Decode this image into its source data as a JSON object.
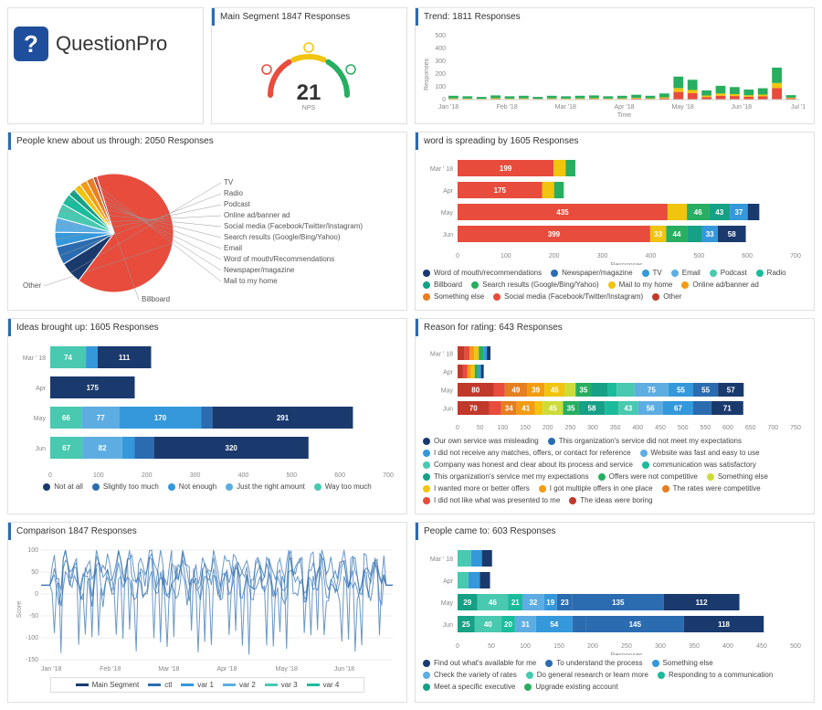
{
  "logo": {
    "text": "QuestionPro"
  },
  "nps": {
    "title": "Main Segment 1847 Responses",
    "value": "21",
    "sub": "NPS",
    "red": "#e74c3c",
    "yellow": "#f1c40f",
    "green": "#27ae60"
  },
  "trend": {
    "title": "Trend: 1811 Responses",
    "type": "stacked-bar",
    "ylabel": "Responses",
    "xlabel": "Time",
    "months": [
      "Jan '18",
      "Feb '18",
      "Mar '18",
      "Apr '18",
      "May '18",
      "Jun '18",
      "Jul '18"
    ],
    "ymax": 500,
    "bars": [
      {
        "x": 0,
        "g": 20,
        "y": 5,
        "r": 5
      },
      {
        "x": 1,
        "g": 18,
        "y": 4,
        "r": 4
      },
      {
        "x": 2,
        "g": 15,
        "y": 3,
        "r": 3
      },
      {
        "x": 3,
        "g": 22,
        "y": 5,
        "r": 6
      },
      {
        "x": 4,
        "g": 18,
        "y": 4,
        "r": 4
      },
      {
        "x": 5,
        "g": 20,
        "y": 5,
        "r": 5
      },
      {
        "x": 6,
        "g": 15,
        "y": 3,
        "r": 3
      },
      {
        "x": 7,
        "g": 20,
        "y": 5,
        "r": 5
      },
      {
        "x": 8,
        "g": 18,
        "y": 4,
        "r": 4
      },
      {
        "x": 9,
        "g": 20,
        "y": 5,
        "r": 5
      },
      {
        "x": 10,
        "g": 22,
        "y": 5,
        "r": 6
      },
      {
        "x": 11,
        "g": 18,
        "y": 4,
        "r": 4
      },
      {
        "x": 12,
        "g": 20,
        "y": 5,
        "r": 5
      },
      {
        "x": 13,
        "g": 25,
        "y": 6,
        "r": 7
      },
      {
        "x": 14,
        "g": 20,
        "y": 5,
        "r": 5
      },
      {
        "x": 15,
        "g": 30,
        "y": 8,
        "r": 10
      },
      {
        "x": 16,
        "g": 90,
        "y": 30,
        "r": 60
      },
      {
        "x": 17,
        "g": 80,
        "y": 25,
        "r": 50
      },
      {
        "x": 18,
        "g": 40,
        "y": 12,
        "r": 20
      },
      {
        "x": 19,
        "g": 60,
        "y": 18,
        "r": 30
      },
      {
        "x": 20,
        "g": 55,
        "y": 15,
        "r": 28
      },
      {
        "x": 21,
        "g": 45,
        "y": 12,
        "r": 22
      },
      {
        "x": 22,
        "g": 50,
        "y": 14,
        "r": 25
      },
      {
        "x": 23,
        "g": 120,
        "y": 40,
        "r": 90
      },
      {
        "x": 24,
        "g": 20,
        "y": 5,
        "r": 10
      }
    ],
    "colors": {
      "g": "#27ae60",
      "y": "#f1c40f",
      "r": "#e74c3c"
    }
  },
  "pie": {
    "title": "People knew about us through: 2050 Responses",
    "type": "pie",
    "slices": [
      {
        "label": "Other",
        "value": 65,
        "color": "#e74c3c"
      },
      {
        "label": "TV",
        "value": 6,
        "color": "#1a3a6e"
      },
      {
        "label": "Radio",
        "value": 5,
        "color": "#2b6cb0"
      },
      {
        "label": "Podcast",
        "value": 4,
        "color": "#3498db"
      },
      {
        "label": "Online ad/banner ad",
        "value": 4,
        "color": "#5dade2"
      },
      {
        "label": "Social media (Facebook/Twitter/Instagram)",
        "value": 4,
        "color": "#48c9b0"
      },
      {
        "label": "Search results (Google/Bing/Yahoo)",
        "value": 3,
        "color": "#1abc9c"
      },
      {
        "label": "Email",
        "value": 2,
        "color": "#16a085"
      },
      {
        "label": "Word of mouth/Recommendations",
        "value": 2,
        "color": "#f1c40f"
      },
      {
        "label": "Newspaper/magazine",
        "value": 2,
        "color": "#f39c12"
      },
      {
        "label": "Mail to my home",
        "value": 2,
        "color": "#e67e22"
      },
      {
        "label": "Billboard",
        "value": 1,
        "color": "#c0392b"
      }
    ]
  },
  "word": {
    "title": "word is spreading by 1605 Responses",
    "type": "stacked-hbar",
    "xlabel": "Responses",
    "xmax": 700,
    "months": [
      "Mar ' 18",
      "Apr",
      "May",
      "Jun"
    ],
    "rows": [
      {
        "segs": [
          {
            "v": 199,
            "c": "#e74c3c",
            "l": "199"
          },
          {
            "v": 25,
            "c": "#f1c40f"
          },
          {
            "v": 20,
            "c": "#27ae60"
          }
        ]
      },
      {
        "segs": [
          {
            "v": 175,
            "c": "#e74c3c",
            "l": "175"
          },
          {
            "v": 25,
            "c": "#f1c40f"
          },
          {
            "v": 20,
            "c": "#27ae60"
          }
        ]
      },
      {
        "segs": [
          {
            "v": 435,
            "c": "#e74c3c",
            "l": "435"
          },
          {
            "v": 40,
            "c": "#f1c40f",
            "l": ""
          },
          {
            "v": 46,
            "c": "#27ae60",
            "l": "46"
          },
          {
            "v": 43,
            "c": "#16a085",
            "l": "43"
          },
          {
            "v": 37,
            "c": "#3498db",
            "l": "37"
          },
          {
            "v": 24,
            "c": "#1a3a6e",
            "l": "24"
          }
        ]
      },
      {
        "segs": [
          {
            "v": 399,
            "c": "#e74c3c",
            "l": "399"
          },
          {
            "v": 33,
            "c": "#f1c40f",
            "l": "33"
          },
          {
            "v": 44,
            "c": "#27ae60",
            "l": "44"
          },
          {
            "v": 30,
            "c": "#16a085"
          },
          {
            "v": 33,
            "c": "#3498db",
            "l": "33"
          },
          {
            "v": 58,
            "c": "#1a3a6e",
            "l": "58"
          }
        ]
      }
    ],
    "legend": [
      {
        "c": "#1a3a6e",
        "t": "Word of mouth/recommendations"
      },
      {
        "c": "#2b6cb0",
        "t": "Newspaper/magazine"
      },
      {
        "c": "#3498db",
        "t": "TV"
      },
      {
        "c": "#5dade2",
        "t": "Email"
      },
      {
        "c": "#48c9b0",
        "t": "Podcast"
      },
      {
        "c": "#1abc9c",
        "t": "Radio"
      },
      {
        "c": "#16a085",
        "t": "Billboard"
      },
      {
        "c": "#27ae60",
        "t": "Search results (Google/Bing/Yahoo)"
      },
      {
        "c": "#f1c40f",
        "t": "Mail to my home"
      },
      {
        "c": "#f39c12",
        "t": "Online ad/banner ad"
      },
      {
        "c": "#e67e22",
        "t": "Something else"
      },
      {
        "c": "#e74c3c",
        "t": "Social media (Facebook/Twitter/Instagram)"
      },
      {
        "c": "#c0392b",
        "t": "Other"
      }
    ]
  },
  "ideas": {
    "title": "Ideas brought up: 1605 Responses",
    "type": "stacked-hbar",
    "xlabel": "Responses",
    "xmax": 700,
    "months": [
      "Mar ' 18",
      "Apr",
      "May",
      "Jun"
    ],
    "rows": [
      {
        "segs": [
          {
            "v": 74,
            "c": "#48c9b0",
            "l": "74"
          },
          {
            "v": 24,
            "c": "#3498db",
            "l": "24"
          },
          {
            "v": 111,
            "c": "#1a3a6e",
            "l": "111"
          }
        ]
      },
      {
        "segs": [
          {
            "v": 175,
            "c": "#1a3a6e",
            "l": "175"
          }
        ]
      },
      {
        "segs": [
          {
            "v": 66,
            "c": "#48c9b0",
            "l": "66"
          },
          {
            "v": 77,
            "c": "#5dade2",
            "l": "77"
          },
          {
            "v": 170,
            "c": "#3498db",
            "l": "170"
          },
          {
            "v": 23,
            "c": "#2b6cb0",
            "l": "23"
          },
          {
            "v": 291,
            "c": "#1a3a6e",
            "l": "291"
          }
        ]
      },
      {
        "segs": [
          {
            "v": 67,
            "c": "#48c9b0",
            "l": "67"
          },
          {
            "v": 82,
            "c": "#5dade2",
            "l": "82"
          },
          {
            "v": 26,
            "c": "#3498db",
            "l": "26"
          },
          {
            "v": 40,
            "c": "#2b6cb0"
          },
          {
            "v": 320,
            "c": "#1a3a6e",
            "l": "320"
          }
        ]
      }
    ],
    "legend": [
      {
        "c": "#1a3a6e",
        "t": "Not at all"
      },
      {
        "c": "#2b6cb0",
        "t": "Slightly too much"
      },
      {
        "c": "#3498db",
        "t": "Not enough"
      },
      {
        "c": "#5dade2",
        "t": "Just the right amount"
      },
      {
        "c": "#48c9b0",
        "t": "Way too much"
      }
    ]
  },
  "reason": {
    "title": "Reason for rating: 643 Responses",
    "type": "stacked-hbar",
    "xlabel": "Responses",
    "xmax": 750,
    "months": [
      "Mar ' 18",
      "Apr",
      "May",
      "Jun"
    ],
    "rows": [
      {
        "segs": [
          {
            "v": 15,
            "c": "#c0392b"
          },
          {
            "v": 12,
            "c": "#e74c3c"
          },
          {
            "v": 10,
            "c": "#f39c12"
          },
          {
            "v": 10,
            "c": "#f1c40f"
          },
          {
            "v": 10,
            "c": "#27ae60"
          },
          {
            "v": 8,
            "c": "#3498db"
          },
          {
            "v": 8,
            "c": "#1a3a6e"
          }
        ]
      },
      {
        "segs": [
          {
            "v": 12,
            "c": "#c0392b"
          },
          {
            "v": 10,
            "c": "#e74c3c"
          },
          {
            "v": 8,
            "c": "#f39c12"
          },
          {
            "v": 8,
            "c": "#f1c40f"
          },
          {
            "v": 8,
            "c": "#27ae60"
          },
          {
            "v": 6,
            "c": "#3498db"
          },
          {
            "v": 6,
            "c": "#1a3a6e"
          }
        ]
      },
      {
        "segs": [
          {
            "v": 80,
            "c": "#c0392b",
            "l": "80"
          },
          {
            "v": 25,
            "c": "#e74c3c",
            "l": "25"
          },
          {
            "v": 49,
            "c": "#e67e22",
            "l": "49"
          },
          {
            "v": 39,
            "c": "#f39c12",
            "l": "39"
          },
          {
            "v": 45,
            "c": "#f1c40f",
            "l": "45"
          },
          {
            "v": 24,
            "c": "#cddc39",
            "l": "24"
          },
          {
            "v": 35,
            "c": "#27ae60",
            "l": "35"
          },
          {
            "v": 37,
            "c": "#16a085"
          },
          {
            "v": 19,
            "c": "#1abc9c",
            "l": "19"
          },
          {
            "v": 40,
            "c": "#48c9b0"
          },
          {
            "v": 75,
            "c": "#5dade2",
            "l": "75"
          },
          {
            "v": 55,
            "c": "#3498db",
            "l": "55"
          },
          {
            "v": 55,
            "c": "#2b6cb0",
            "l": "55"
          },
          {
            "v": 57,
            "c": "#1a3a6e",
            "l": "57"
          }
        ]
      },
      {
        "segs": [
          {
            "v": 70,
            "c": "#c0392b",
            "l": "70"
          },
          {
            "v": 27,
            "c": "#e74c3c",
            "l": "27"
          },
          {
            "v": 34,
            "c": "#e67e22",
            "l": "34"
          },
          {
            "v": 41,
            "c": "#f39c12",
            "l": "41"
          },
          {
            "v": 17,
            "c": "#f1c40f",
            "l": "17"
          },
          {
            "v": 45,
            "c": "#cddc39",
            "l": "45"
          },
          {
            "v": 35,
            "c": "#27ae60",
            "l": "35"
          },
          {
            "v": 58,
            "c": "#16a085",
            "l": "58"
          },
          {
            "v": 30,
            "c": "#1abc9c"
          },
          {
            "v": 43,
            "c": "#48c9b0",
            "l": "43"
          },
          {
            "v": 56,
            "c": "#5dade2",
            "l": "56"
          },
          {
            "v": 67,
            "c": "#3498db",
            "l": "67"
          },
          {
            "v": 40,
            "c": "#2b6cb0"
          },
          {
            "v": 71,
            "c": "#1a3a6e",
            "l": "71"
          }
        ]
      }
    ],
    "legend": [
      {
        "c": "#1a3a6e",
        "t": "Our own service was misleading"
      },
      {
        "c": "#2b6cb0",
        "t": "This organization's service did not meet my expectations"
      },
      {
        "c": "#3498db",
        "t": "I did not receive any matches, offers, or contact for reference"
      },
      {
        "c": "#5dade2",
        "t": "Website was fast and easy to use"
      },
      {
        "c": "#48c9b0",
        "t": "Company was honest and clear about its process and service"
      },
      {
        "c": "#1abc9c",
        "t": "communication was satisfactory"
      },
      {
        "c": "#16a085",
        "t": "This organization's service met my expectations"
      },
      {
        "c": "#27ae60",
        "t": "Offers were not competitive"
      },
      {
        "c": "#cddc39",
        "t": "Something else"
      },
      {
        "c": "#f1c40f",
        "t": "I wanted more or better offers"
      },
      {
        "c": "#f39c12",
        "t": "I got multiple offers in one place"
      },
      {
        "c": "#e67e22",
        "t": "The rates were competitive"
      },
      {
        "c": "#e74c3c",
        "t": "I did not like what was presented to me"
      },
      {
        "c": "#c0392b",
        "t": "The ideas were boring"
      }
    ]
  },
  "comparison": {
    "title": "Comparison 1847 Responses",
    "type": "line",
    "ylabel": "Score",
    "ymin": -150,
    "ymax": 100,
    "months": [
      "Jan '18",
      "Feb '18",
      "Mar '18",
      "Apr '18",
      "May '18",
      "Jun '18"
    ],
    "line_color": "#2b6cb0",
    "legend": [
      {
        "c": "#1a3a6e",
        "t": "Main Segment"
      },
      {
        "c": "#2b6cb0",
        "t": "ctl"
      },
      {
        "c": "#3498db",
        "t": "var 1"
      },
      {
        "c": "#5dade2",
        "t": "var 2"
      },
      {
        "c": "#48c9b0",
        "t": "var 3"
      },
      {
        "c": "#1abc9c",
        "t": "var 4"
      }
    ]
  },
  "people": {
    "title": "People came to: 603 Responses",
    "type": "stacked-hbar",
    "xlabel": "Responses",
    "xmax": 500,
    "months": [
      "Mar ' 18",
      "Apr",
      "May",
      "Jun"
    ],
    "rows": [
      {
        "segs": [
          {
            "v": 20,
            "c": "#48c9b0"
          },
          {
            "v": 16,
            "c": "#3498db",
            "l": "16"
          },
          {
            "v": 15,
            "c": "#1a3a6e"
          }
        ]
      },
      {
        "segs": [
          {
            "v": 16,
            "c": "#48c9b0",
            "l": "16"
          },
          {
            "v": 17,
            "c": "#3498db",
            "l": "17"
          },
          {
            "v": 15,
            "c": "#1a3a6e"
          }
        ]
      },
      {
        "segs": [
          {
            "v": 29,
            "c": "#16a085",
            "l": "29"
          },
          {
            "v": 46,
            "c": "#48c9b0",
            "l": "46"
          },
          {
            "v": 21,
            "c": "#1abc9c",
            "l": "21"
          },
          {
            "v": 32,
            "c": "#5dade2",
            "l": "32"
          },
          {
            "v": 19,
            "c": "#3498db",
            "l": "19"
          },
          {
            "v": 23,
            "c": "#2b6cb0",
            "l": "23"
          },
          {
            "v": 135,
            "c": "#2b6cb0",
            "l": "135"
          },
          {
            "v": 112,
            "c": "#1a3a6e",
            "l": "112"
          }
        ]
      },
      {
        "segs": [
          {
            "v": 25,
            "c": "#16a085",
            "l": "25"
          },
          {
            "v": 40,
            "c": "#48c9b0",
            "l": "40"
          },
          {
            "v": 20,
            "c": "#1abc9c",
            "l": "20"
          },
          {
            "v": 31,
            "c": "#5dade2",
            "l": "31"
          },
          {
            "v": 54,
            "c": "#3498db",
            "l": "54"
          },
          {
            "v": 20,
            "c": "#2b6cb0"
          },
          {
            "v": 145,
            "c": "#2b6cb0",
            "l": "145"
          },
          {
            "v": 118,
            "c": "#1a3a6e",
            "l": "118"
          }
        ]
      }
    ],
    "legend": [
      {
        "c": "#1a3a6e",
        "t": "Find out what's available for me"
      },
      {
        "c": "#2b6cb0",
        "t": "To understand the process"
      },
      {
        "c": "#3498db",
        "t": "Something else"
      },
      {
        "c": "#5dade2",
        "t": "Check the variety of rates"
      },
      {
        "c": "#48c9b0",
        "t": "Do general research or learn more"
      },
      {
        "c": "#1abc9c",
        "t": "Responding to a communication"
      },
      {
        "c": "#16a085",
        "t": "Meet a specific executive"
      },
      {
        "c": "#27ae60",
        "t": "Upgrade existing account"
      }
    ]
  }
}
